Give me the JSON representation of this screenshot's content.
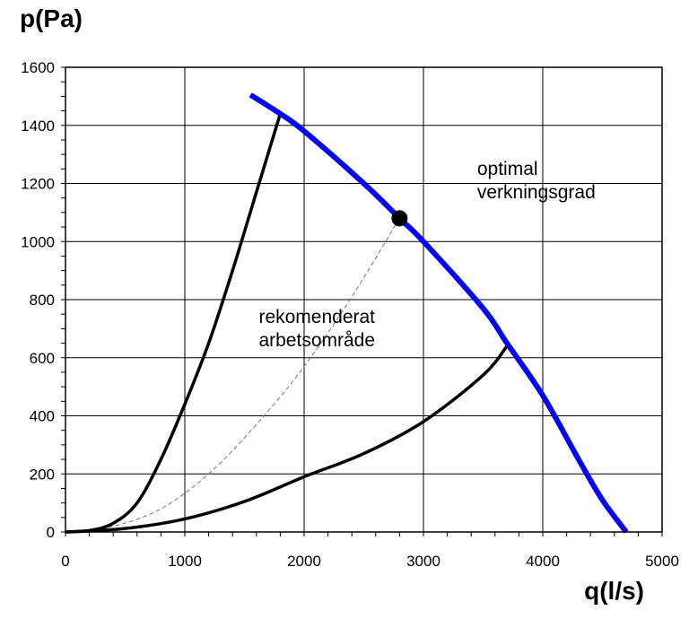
{
  "chart_data": {
    "type": "line",
    "ylabel": "p(Pa)",
    "xlabel": "q(l/s)",
    "xlim": [
      0,
      5000
    ],
    "ylim": [
      0,
      1600
    ],
    "x_ticks": [
      0,
      1000,
      2000,
      3000,
      4000,
      5000
    ],
    "y_ticks": [
      0,
      200,
      400,
      600,
      800,
      1000,
      1200,
      1400,
      1600
    ],
    "grid": true,
    "colors": {
      "fan_curve": "#0000ff",
      "system_curves": "#000000",
      "optimal_curve": "#777777"
    },
    "series": [
      {
        "role": "fan-curve",
        "x": [
          1550,
          1800,
          2000,
          2500,
          2800,
          3000,
          3500,
          3700,
          4000,
          4300,
          4500,
          4700
        ],
        "y": [
          1505,
          1440,
          1380,
          1200,
          1080,
          1000,
          770,
          650,
          470,
          250,
          110,
          0
        ]
      },
      {
        "role": "system-curve-upper",
        "x": [
          0,
          200,
          400,
          600,
          800,
          1000,
          1200,
          1400,
          1600,
          1800
        ],
        "y": [
          0,
          5,
          30,
          100,
          250,
          440,
          650,
          900,
          1170,
          1440
        ]
      },
      {
        "role": "optimal-efficiency-curve",
        "x": [
          0,
          400,
          800,
          1200,
          1600,
          2000,
          2400,
          2800
        ],
        "y": [
          0,
          20,
          80,
          200,
          370,
          570,
          810,
          1080
        ]
      },
      {
        "role": "system-curve-lower",
        "x": [
          0,
          500,
          1000,
          1500,
          2000,
          2500,
          3000,
          3500,
          3700
        ],
        "y": [
          0,
          12,
          45,
          105,
          190,
          270,
          380,
          540,
          640
        ]
      }
    ],
    "marker": {
      "label": "",
      "x": 2800,
      "y": 1080
    },
    "annotations": [
      {
        "lines": [
          "optimal",
          "verkningsgrad"
        ],
        "x": 3450,
        "y": 1230
      },
      {
        "lines": [
          "rekomenderat",
          "arbetsområde"
        ],
        "x": 1620,
        "y": 720
      }
    ]
  }
}
